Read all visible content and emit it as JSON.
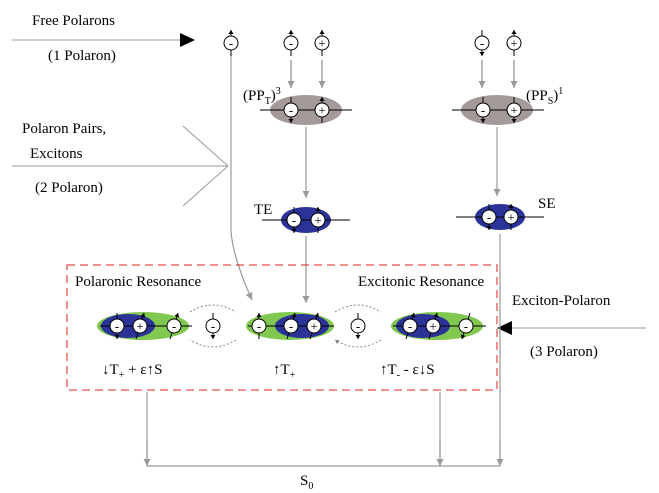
{
  "free_polarons": {
    "title": "Free Polarons",
    "count": "(1 Polaron)"
  },
  "polaron_pairs": {
    "title_line1": "Polaron Pairs,",
    "title_line2": "Excitons",
    "count": "(2 Polaron)"
  },
  "exciton_polaron": {
    "title": "Exciton-Polaron",
    "count": "(3 Polaron)"
  },
  "states": {
    "pp_triplet": {
      "base": "(PP",
      "sub": "T",
      "close": ")",
      "sup": "3"
    },
    "pp_singlet": {
      "base": "(PP",
      "sub": "S",
      "close": ")",
      "sup": "1"
    },
    "te": "TE",
    "se": "SE",
    "ground": {
      "base": "S",
      "sub": "0"
    }
  },
  "resonance": {
    "polaronic": "Polaronic Resonance",
    "excitonic": "Excitonic Resonance"
  },
  "mixed_states": [
    {
      "base": "↓T",
      "sub": "+",
      "rest": " + ε↑S"
    },
    {
      "base": "↑T",
      "sub": "+"
    },
    {
      "base": "↑T",
      "sub": "-",
      "rest": " - ε↓S"
    }
  ],
  "charges": {
    "negative": "-",
    "positive": "+"
  }
}
